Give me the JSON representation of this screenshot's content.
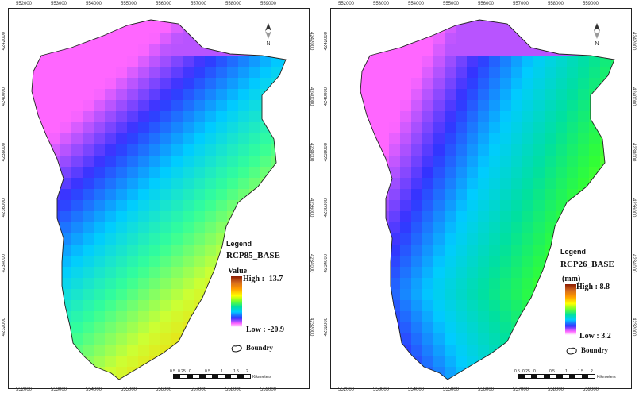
{
  "maps": [
    {
      "id": "left",
      "legend_title": "Legend",
      "layer_name": "RCP85_BASE",
      "units": "Value",
      "high_label": "High : -13.7",
      "low_label": "Low : -20.9",
      "boundary_label": "Boundry",
      "north_label": "N",
      "x_ticks": [
        "552000",
        "553000",
        "554000",
        "555000",
        "556000",
        "557000",
        "558000",
        "559000"
      ],
      "y_ticks": [
        "4242000",
        "4240000",
        "4238000",
        "4236000",
        "4234000",
        "4232000"
      ],
      "scale_labels": [
        "0.5",
        "0.25",
        "0",
        "0.5",
        "1",
        "1.5",
        "2",
        "Kilometers"
      ],
      "colors": [
        "#ff66ff",
        "#3333ff",
        "#00ccff",
        "#33ff99",
        "#ccff33",
        "#ffcc00",
        "#ff8c1a",
        "#8b1a00"
      ]
    },
    {
      "id": "right",
      "legend_title": "Legend",
      "layer_name": "RCP26_BASE",
      "units": "(mm)",
      "high_label": "High : 8.8",
      "low_label": "Low : 3.2",
      "boundary_label": "Boundry",
      "north_label": "N",
      "x_ticks": [
        "552000",
        "553000",
        "554000",
        "555000",
        "556000",
        "557000",
        "558000",
        "559000"
      ],
      "y_ticks": [
        "4242000",
        "4240000",
        "4238000",
        "4236000",
        "4234000",
        "4232000"
      ],
      "scale_labels": [
        "0.5",
        "0.25",
        "0",
        "0.5",
        "1",
        "1.5",
        "2",
        "Kilometers"
      ],
      "colors": [
        "#ff66ff",
        "#3333ff",
        "#00ccff",
        "#00e0a0",
        "#33ff33",
        "#ccff33",
        "#ffcc00",
        "#8b1a00"
      ]
    }
  ]
}
